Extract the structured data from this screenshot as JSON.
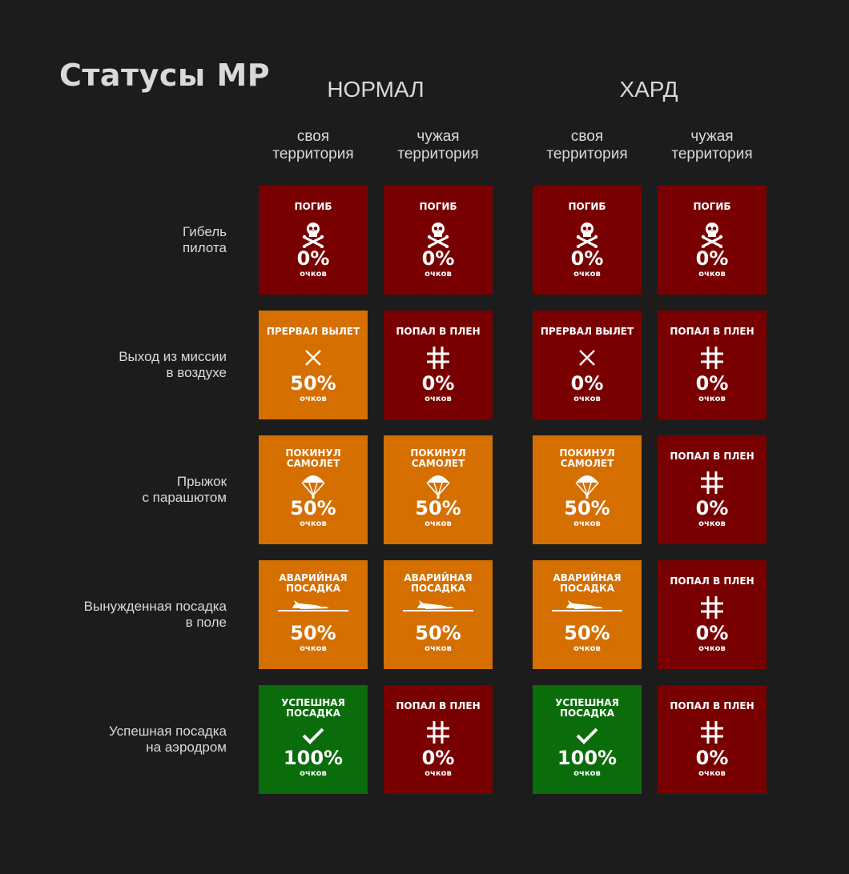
{
  "title": "Статусы МР",
  "modes": [
    "НОРМАЛ",
    "ХАРД"
  ],
  "columns": [
    "своя\nтерритория",
    "чужая\nтерритория",
    "своя\nтерритория",
    "чужая\nтерритория"
  ],
  "rows": [
    "Гибель\nпилота",
    "Выход из миссии\nв воздухе",
    "Прыжок\nс парашютом",
    "Вынужденная посадка\nв поле",
    "Успешная посадка\nна аэродром"
  ],
  "colors": {
    "red": "#790000",
    "orange": "#d56f00",
    "green": "#0b6c0b",
    "background": "#1c1c1c"
  },
  "cards": [
    [
      {
        "status": "ПОГИБ",
        "icon": "skull-icon",
        "color": "red",
        "pct": "0%",
        "unit": "очков"
      },
      {
        "status": "ПОГИБ",
        "icon": "skull-icon",
        "color": "red",
        "pct": "0%",
        "unit": "очков"
      },
      {
        "status": "ПОГИБ",
        "icon": "skull-icon",
        "color": "red",
        "pct": "0%",
        "unit": "очков"
      },
      {
        "status": "ПОГИБ",
        "icon": "skull-icon",
        "color": "red",
        "pct": "0%",
        "unit": "очков"
      }
    ],
    [
      {
        "status": "ПРЕРВАЛ ВЫЛЕТ",
        "icon": "cross-icon",
        "color": "orange",
        "pct": "50%",
        "unit": "очков"
      },
      {
        "status": "ПОПАЛ В ПЛЕН",
        "icon": "bars-icon",
        "color": "red",
        "pct": "0%",
        "unit": "очков"
      },
      {
        "status": "ПРЕРВАЛ ВЫЛЕТ",
        "icon": "cross-icon",
        "color": "red",
        "pct": "0%",
        "unit": "очков"
      },
      {
        "status": "ПОПАЛ В ПЛЕН",
        "icon": "bars-icon",
        "color": "red",
        "pct": "0%",
        "unit": "очков"
      }
    ],
    [
      {
        "status": "ПОКИНУЛ\nСАМОЛЕТ",
        "icon": "parachute-icon",
        "color": "orange",
        "pct": "50%",
        "unit": "очков"
      },
      {
        "status": "ПОКИНУЛ\nСАМОЛЕТ",
        "icon": "parachute-icon",
        "color": "orange",
        "pct": "50%",
        "unit": "очков"
      },
      {
        "status": "ПОКИНУЛ\nСАМОЛЕТ",
        "icon": "parachute-icon",
        "color": "orange",
        "pct": "50%",
        "unit": "очков"
      },
      {
        "status": "ПОПАЛ В ПЛЕН",
        "icon": "bars-icon",
        "color": "red",
        "pct": "0%",
        "unit": "очков"
      }
    ],
    [
      {
        "status": "АВАРИЙНАЯ\nПОСАДКА",
        "icon": "crashed-plane-icon",
        "color": "orange",
        "pct": "50%",
        "unit": "очков"
      },
      {
        "status": "АВАРИЙНАЯ\nПОСАДКА",
        "icon": "crashed-plane-icon",
        "color": "orange",
        "pct": "50%",
        "unit": "очков"
      },
      {
        "status": "АВАРИЙНАЯ\nПОСАДКА",
        "icon": "crashed-plane-icon",
        "color": "orange",
        "pct": "50%",
        "unit": "очков"
      },
      {
        "status": "ПОПАЛ В ПЛЕН",
        "icon": "bars-icon",
        "color": "red",
        "pct": "0%",
        "unit": "очков"
      }
    ],
    [
      {
        "status": "УСПЕШНАЯ\nПОСАДКА",
        "icon": "checkmark-icon",
        "color": "green",
        "pct": "100%",
        "unit": "очков"
      },
      {
        "status": "ПОПАЛ В ПЛЕН",
        "icon": "bars-icon",
        "color": "red",
        "pct": "0%",
        "unit": "очков"
      },
      {
        "status": "УСПЕШНАЯ\nПОСАДКА",
        "icon": "checkmark-icon",
        "color": "green",
        "pct": "100%",
        "unit": "очков"
      },
      {
        "status": "ПОПАЛ В ПЛЕН",
        "icon": "bars-icon",
        "color": "red",
        "pct": "0%",
        "unit": "очков"
      }
    ]
  ]
}
